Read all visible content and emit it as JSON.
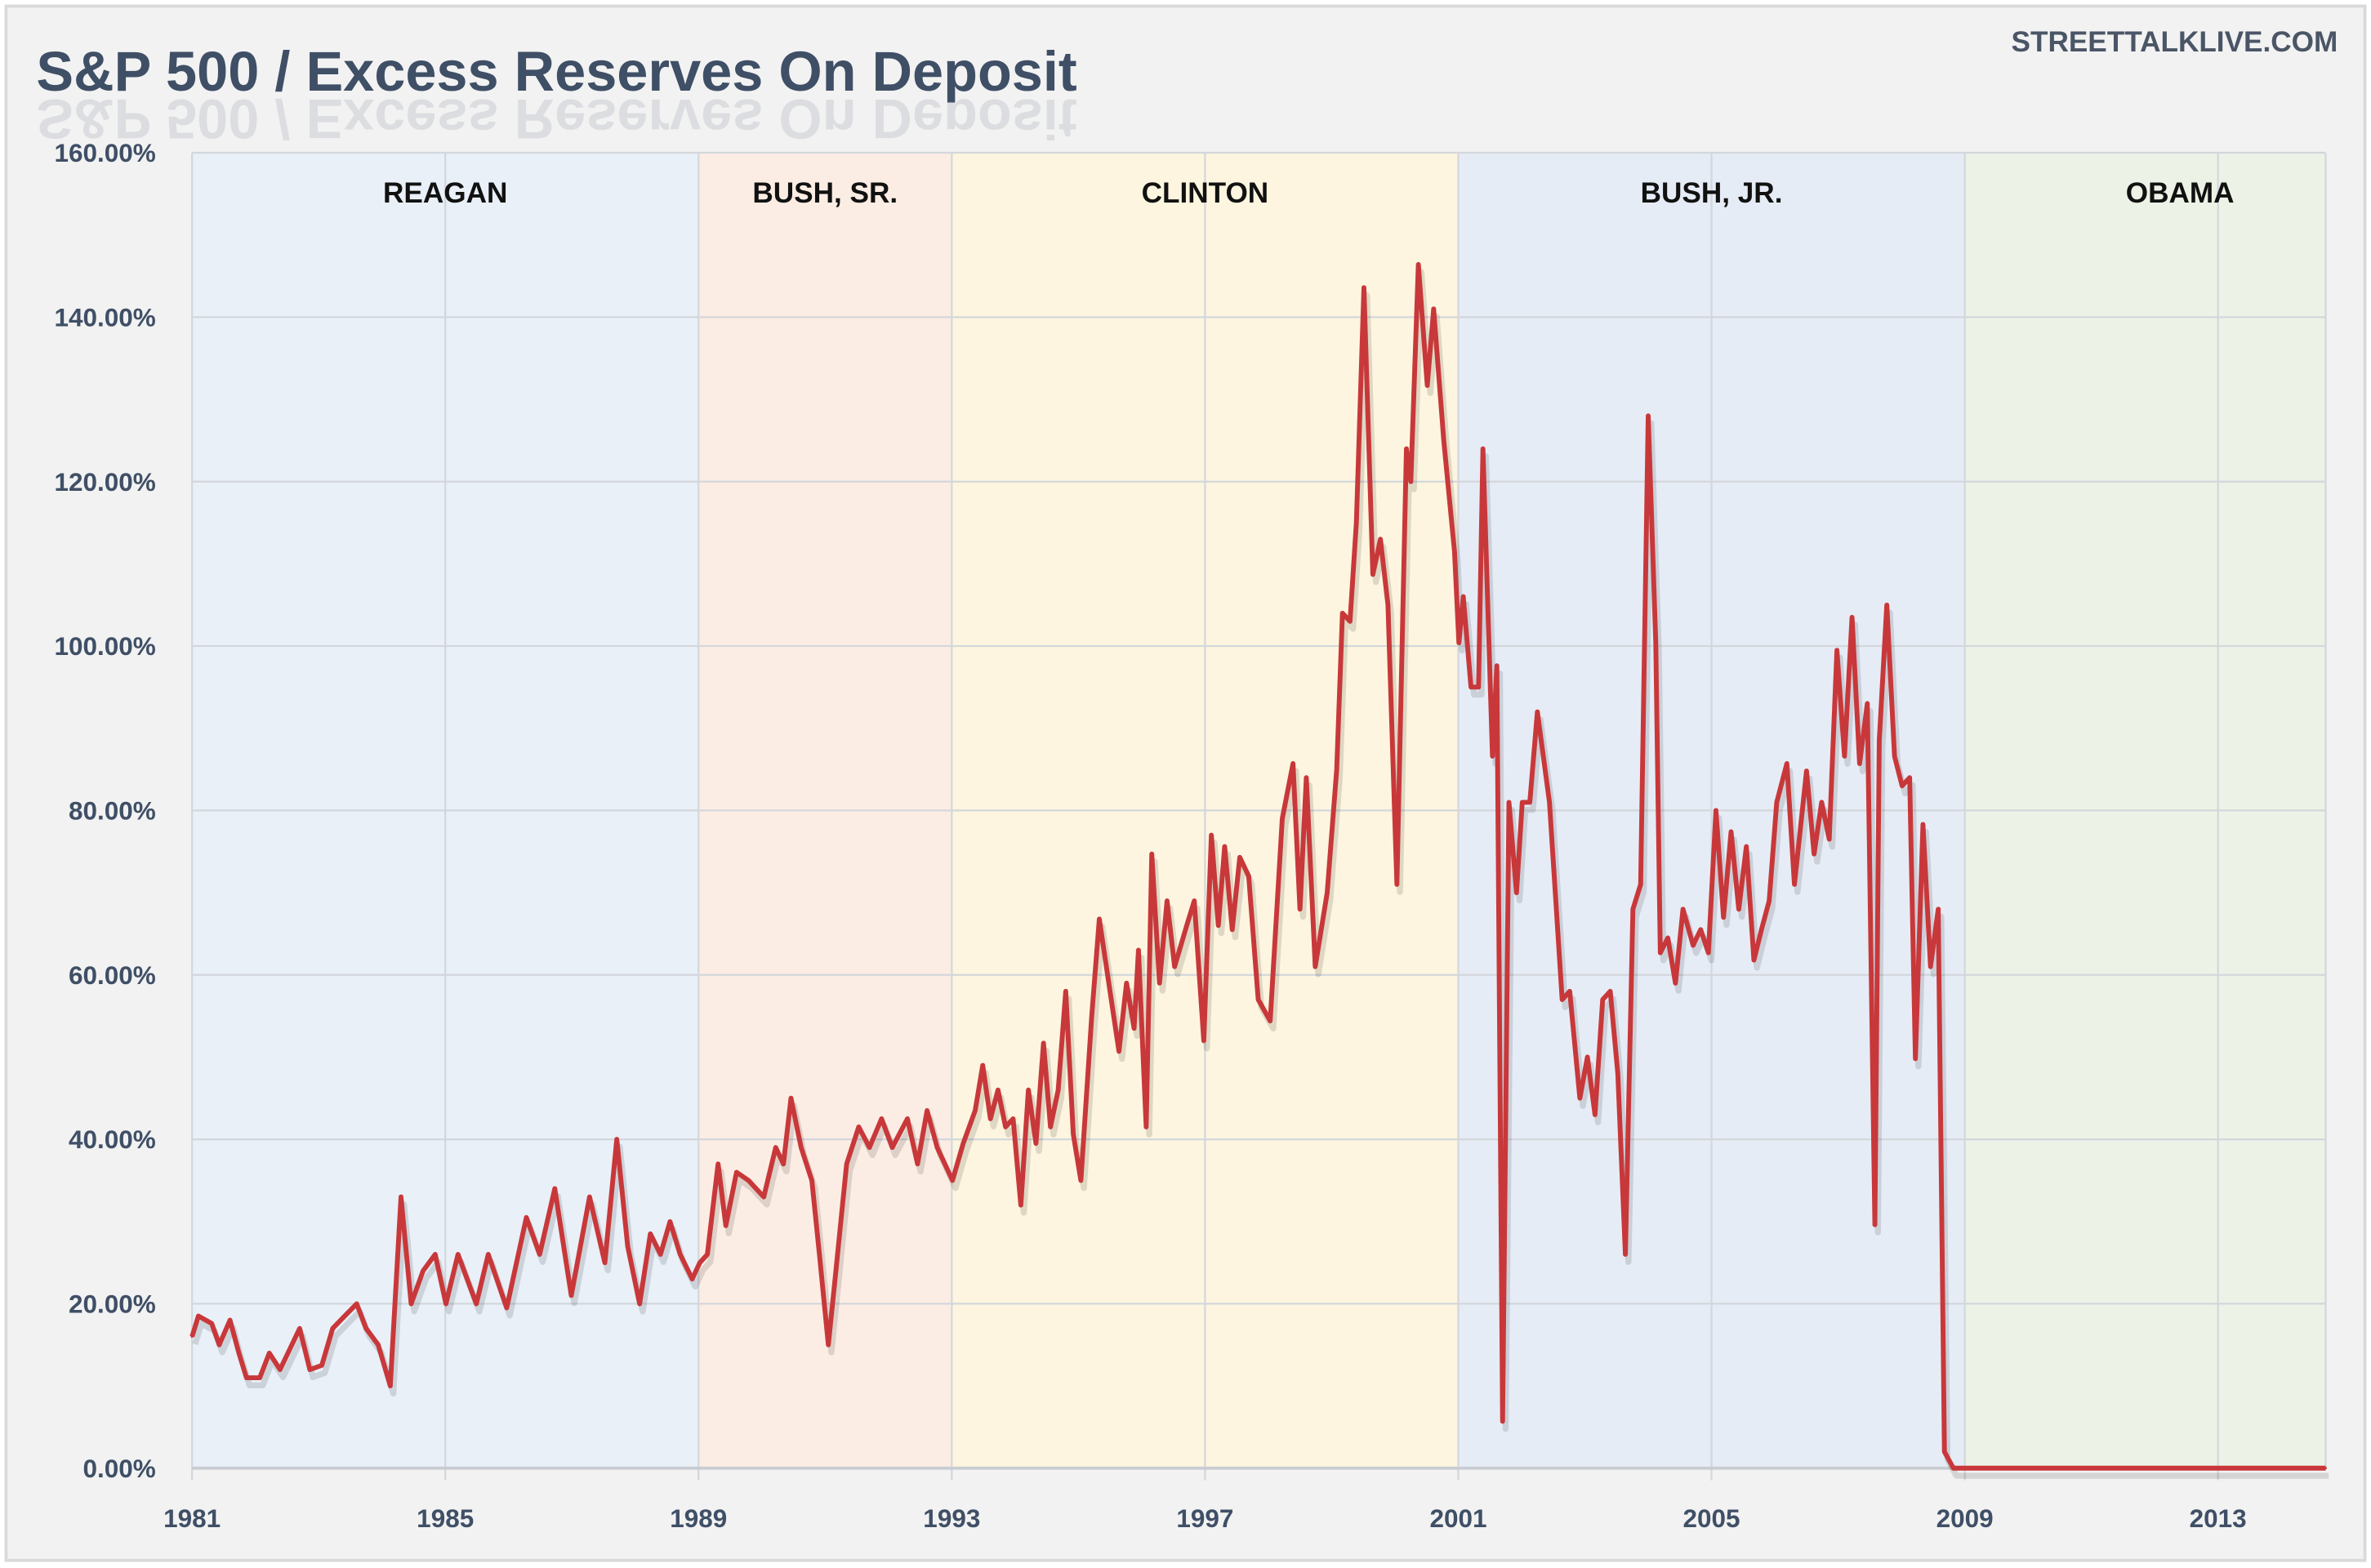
{
  "title": "S&P 500 / Excess Reserves On Deposit",
  "watermark": "STREETTALKLIVE.COM",
  "colors": {
    "line": "#c8383a",
    "zero_line": "#c00000",
    "grid": "#d3d7dc",
    "panel": "#f2f2f2"
  },
  "chart_data": {
    "type": "line",
    "title": "S&P 500 / Excess Reserves On Deposit",
    "xlabel": "",
    "ylabel": "",
    "xlim": [
      1981,
      2014.7
    ],
    "ylim": [
      0,
      160
    ],
    "grid": true,
    "x_ticks": [
      "1981",
      "1985",
      "1989",
      "1993",
      "1997",
      "2001",
      "2005",
      "2009",
      "2013"
    ],
    "y_ticks": [
      "0.00%",
      "20.00%",
      "40.00%",
      "60.00%",
      "80.00%",
      "100.00%",
      "120.00%",
      "140.00%",
      "160.00%"
    ],
    "presidencies": [
      {
        "label": "REAGAN",
        "start": 1981,
        "end": 1989,
        "color": "#e9f0f8"
      },
      {
        "label": "BUSH, SR.",
        "start": 1989,
        "end": 1993,
        "color": "#fcede4"
      },
      {
        "label": "CLINTON",
        "start": 1993,
        "end": 2001,
        "color": "#fdf5df"
      },
      {
        "label": "BUSH, JR.",
        "start": 2001,
        "end": 2009,
        "color": "#e6ecf6"
      },
      {
        "label": "OBAMA",
        "start": 2009,
        "end": 2014.7,
        "color": "#ecf3e6"
      }
    ],
    "series": [
      {
        "name": "S&P 500 / Excess Reserves (%)",
        "points": [
          [
            1981.0,
            16
          ],
          [
            1981.1,
            18.5
          ],
          [
            1981.31,
            17.6
          ],
          [
            1981.43,
            15
          ],
          [
            1981.6,
            18
          ],
          [
            1981.74,
            14
          ],
          [
            1981.86,
            11
          ],
          [
            1982.07,
            11
          ],
          [
            1982.22,
            14
          ],
          [
            1982.39,
            12
          ],
          [
            1982.7,
            17
          ],
          [
            1982.86,
            12
          ],
          [
            1983.05,
            12.5
          ],
          [
            1983.22,
            17
          ],
          [
            1983.41,
            18.5
          ],
          [
            1983.6,
            20
          ],
          [
            1983.75,
            17
          ],
          [
            1983.94,
            15
          ],
          [
            1984.13,
            10
          ],
          [
            1984.3,
            33
          ],
          [
            1984.46,
            20
          ],
          [
            1984.65,
            24
          ],
          [
            1984.84,
            26
          ],
          [
            1985.01,
            20
          ],
          [
            1985.2,
            26
          ],
          [
            1985.49,
            20
          ],
          [
            1985.68,
            26
          ],
          [
            1985.97,
            19.5
          ],
          [
            1986.28,
            30.5
          ],
          [
            1986.49,
            26
          ],
          [
            1986.73,
            34
          ],
          [
            1986.99,
            21
          ],
          [
            1987.28,
            33
          ],
          [
            1987.52,
            25
          ],
          [
            1987.71,
            40
          ],
          [
            1987.88,
            27
          ],
          [
            1988.07,
            20
          ],
          [
            1988.24,
            28.5
          ],
          [
            1988.4,
            26
          ],
          [
            1988.55,
            30
          ],
          [
            1988.71,
            26
          ],
          [
            1988.9,
            23
          ],
          [
            1989.02,
            25
          ],
          [
            1989.14,
            26
          ],
          [
            1989.31,
            37
          ],
          [
            1989.43,
            29.5
          ],
          [
            1989.6,
            36
          ],
          [
            1989.79,
            35
          ],
          [
            1990.03,
            33
          ],
          [
            1990.22,
            39
          ],
          [
            1990.34,
            37
          ],
          [
            1990.46,
            45
          ],
          [
            1990.62,
            39
          ],
          [
            1990.79,
            35
          ],
          [
            1990.91,
            26
          ],
          [
            1991.05,
            15
          ],
          [
            1991.17,
            24
          ],
          [
            1991.34,
            37
          ],
          [
            1991.53,
            41.5
          ],
          [
            1991.7,
            39
          ],
          [
            1991.89,
            42.5
          ],
          [
            1992.06,
            39
          ],
          [
            1992.3,
            42.5
          ],
          [
            1992.46,
            37
          ],
          [
            1992.61,
            43.5
          ],
          [
            1992.77,
            39
          ],
          [
            1993.01,
            35
          ],
          [
            1993.18,
            39.5
          ],
          [
            1993.37,
            43.5
          ],
          [
            1993.49,
            49
          ],
          [
            1993.61,
            42.5
          ],
          [
            1993.73,
            46
          ],
          [
            1993.85,
            41.5
          ],
          [
            1993.97,
            42.5
          ],
          [
            1994.09,
            32
          ],
          [
            1994.21,
            46
          ],
          [
            1994.33,
            39.5
          ],
          [
            1994.45,
            51.7
          ],
          [
            1994.56,
            41.5
          ],
          [
            1994.68,
            46
          ],
          [
            1994.8,
            58
          ],
          [
            1994.92,
            40.6
          ],
          [
            1995.04,
            35
          ],
          [
            1995.21,
            55
          ],
          [
            1995.33,
            66.8
          ],
          [
            1995.52,
            57
          ],
          [
            1995.64,
            50.7
          ],
          [
            1995.76,
            59
          ],
          [
            1995.88,
            53.5
          ],
          [
            1995.95,
            63
          ],
          [
            1996.07,
            41.5
          ],
          [
            1996.16,
            74.7
          ],
          [
            1996.28,
            59
          ],
          [
            1996.4,
            69
          ],
          [
            1996.52,
            61
          ],
          [
            1996.71,
            66
          ],
          [
            1996.83,
            69
          ],
          [
            1996.98,
            52
          ],
          [
            1997.1,
            77
          ],
          [
            1997.21,
            66
          ],
          [
            1997.31,
            75.6
          ],
          [
            1997.43,
            65.5
          ],
          [
            1997.55,
            74.3
          ],
          [
            1997.69,
            72
          ],
          [
            1997.84,
            57
          ],
          [
            1998.03,
            54.4
          ],
          [
            1998.22,
            79
          ],
          [
            1998.39,
            85.7
          ],
          [
            1998.5,
            68
          ],
          [
            1998.6,
            84
          ],
          [
            1998.74,
            61
          ],
          [
            1998.93,
            70
          ],
          [
            1999.08,
            85
          ],
          [
            1999.17,
            104
          ],
          [
            1999.29,
            103
          ],
          [
            1999.39,
            115
          ],
          [
            1999.51,
            143.6
          ],
          [
            1999.65,
            108.7
          ],
          [
            1999.77,
            113
          ],
          [
            1999.89,
            105
          ],
          [
            2000.03,
            71
          ],
          [
            2000.18,
            124
          ],
          [
            2000.25,
            120
          ],
          [
            2000.37,
            146.4
          ],
          [
            2000.51,
            131.7
          ],
          [
            2000.61,
            141
          ],
          [
            2000.77,
            125
          ],
          [
            2000.94,
            111.5
          ],
          [
            2001.01,
            100.4
          ],
          [
            2001.08,
            106
          ],
          [
            2001.2,
            95
          ],
          [
            2001.32,
            95
          ],
          [
            2001.39,
            124
          ],
          [
            2001.54,
            86.6
          ],
          [
            2001.61,
            97.6
          ],
          [
            2001.7,
            5.7
          ],
          [
            2001.8,
            81
          ],
          [
            2001.92,
            70
          ],
          [
            2002.01,
            81
          ],
          [
            2002.13,
            81
          ],
          [
            2002.25,
            92
          ],
          [
            2002.44,
            81
          ],
          [
            2002.64,
            57
          ],
          [
            2002.76,
            58
          ],
          [
            2002.92,
            45
          ],
          [
            2003.04,
            50
          ],
          [
            2003.16,
            43
          ],
          [
            2003.28,
            57
          ],
          [
            2003.4,
            58
          ],
          [
            2003.52,
            48
          ],
          [
            2003.64,
            26
          ],
          [
            2003.76,
            68
          ],
          [
            2003.88,
            71
          ],
          [
            2004.0,
            128
          ],
          [
            2004.12,
            100.4
          ],
          [
            2004.19,
            62.7
          ],
          [
            2004.31,
            64.5
          ],
          [
            2004.43,
            59
          ],
          [
            2004.55,
            68
          ],
          [
            2004.71,
            63.6
          ],
          [
            2004.83,
            65.5
          ],
          [
            2004.95,
            62.7
          ],
          [
            2005.07,
            80
          ],
          [
            2005.19,
            67
          ],
          [
            2005.31,
            77.4
          ],
          [
            2005.43,
            68
          ],
          [
            2005.55,
            75.6
          ],
          [
            2005.67,
            61.8
          ],
          [
            2005.79,
            65.5
          ],
          [
            2005.91,
            69
          ],
          [
            2006.03,
            81
          ],
          [
            2006.19,
            85.7
          ],
          [
            2006.31,
            71
          ],
          [
            2006.5,
            84.8
          ],
          [
            2006.62,
            74.7
          ],
          [
            2006.74,
            81
          ],
          [
            2006.86,
            76.5
          ],
          [
            2006.98,
            99.5
          ],
          [
            2007.1,
            86.6
          ],
          [
            2007.22,
            103.5
          ],
          [
            2007.34,
            85.7
          ],
          [
            2007.46,
            93
          ],
          [
            2007.58,
            29.6
          ],
          [
            2007.65,
            88.5
          ],
          [
            2007.77,
            105
          ],
          [
            2007.89,
            86.6
          ],
          [
            2008.01,
            83
          ],
          [
            2008.13,
            84
          ],
          [
            2008.22,
            49.8
          ],
          [
            2008.34,
            78.3
          ],
          [
            2008.46,
            61
          ],
          [
            2008.58,
            68
          ],
          [
            2008.68,
            2
          ],
          [
            2008.82,
            0
          ],
          [
            2014.7,
            0
          ]
        ]
      }
    ]
  }
}
